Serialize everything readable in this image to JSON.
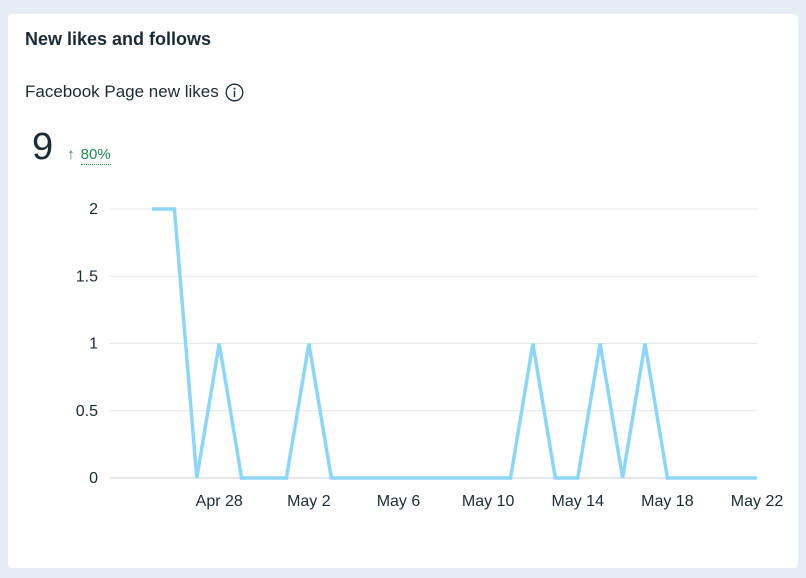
{
  "card": {
    "title": "New likes and follows",
    "metric_label": "Facebook Page new likes",
    "info_icon": "info-circle-icon",
    "value": "9",
    "change_arrow": "↑",
    "change_pct": "80%",
    "change_direction": "up",
    "change_color": "#1f8a4c"
  },
  "chart_data": {
    "type": "line",
    "title": "",
    "xlabel": "",
    "ylabel": "",
    "ylim": [
      0,
      2
    ],
    "yticks": [
      "0",
      "0.5",
      "1",
      "1.5",
      "2"
    ],
    "xticks": [
      "Apr 28",
      "May 2",
      "May 6",
      "May 10",
      "May 14",
      "May 18",
      "May 22"
    ],
    "grid": true,
    "line_color": "#8dd6f8",
    "x": [
      "Apr 25",
      "Apr 26",
      "Apr 27",
      "Apr 28",
      "Apr 29",
      "Apr 30",
      "May 1",
      "May 2",
      "May 3",
      "May 4",
      "May 5",
      "May 6",
      "May 7",
      "May 8",
      "May 9",
      "May 10",
      "May 11",
      "May 12",
      "May 13",
      "May 14",
      "May 15",
      "May 16",
      "May 17",
      "May 18",
      "May 19",
      "May 20",
      "May 21",
      "May 22"
    ],
    "series": [
      {
        "values": [
          2,
          2,
          0,
          1,
          0,
          0,
          0,
          1,
          0,
          0,
          0,
          0,
          0,
          0,
          0,
          0,
          0,
          1,
          0,
          0,
          1,
          0,
          1,
          0,
          0,
          0,
          0,
          0
        ]
      }
    ]
  }
}
